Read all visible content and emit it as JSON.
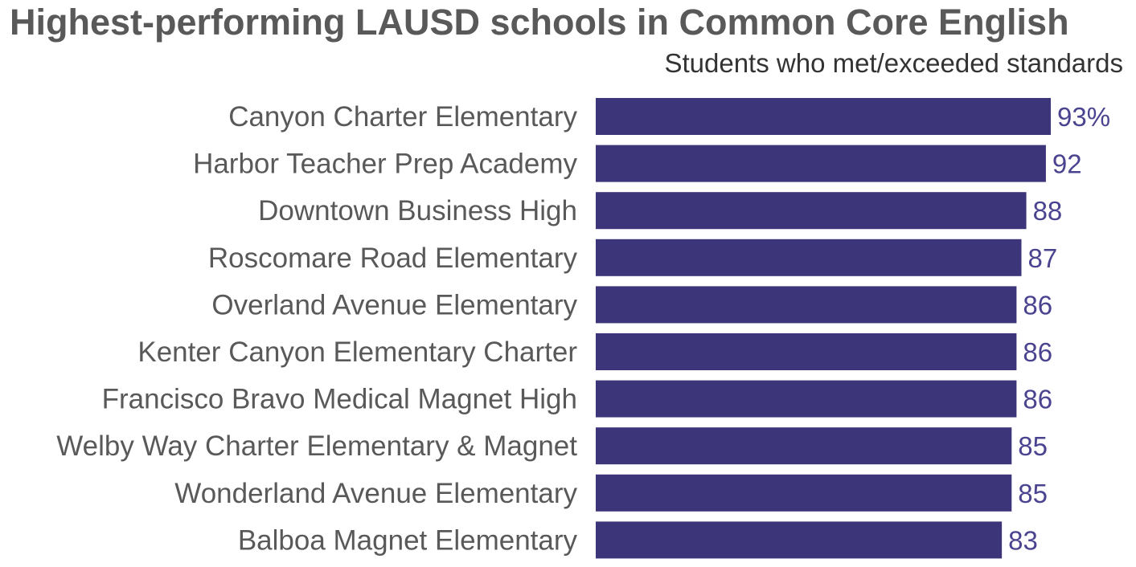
{
  "chart_data": {
    "type": "bar",
    "orientation": "horizontal",
    "title": "Highest-performing LAUSD schools in Common Core English",
    "subtitle": "Students who met/exceeded standards",
    "categories": [
      "Canyon Charter Elementary",
      "Harbor Teacher Prep Academy",
      "Downtown Business High",
      "Roscomare Road Elementary",
      "Overland Avenue Elementary",
      "Kenter Canyon Elementary Charter",
      "Francisco Bravo Medical Magnet High",
      "Welby Way Charter Elementary & Magnet",
      "Wonderland Avenue Elementary",
      "Balboa Magnet Elementary"
    ],
    "values": [
      93,
      92,
      88,
      87,
      86,
      86,
      86,
      85,
      85,
      83
    ],
    "value_labels": [
      "93%",
      "92",
      "88",
      "87",
      "86",
      "86",
      "86",
      "85",
      "85",
      "83"
    ],
    "xlim": [
      0,
      93
    ],
    "grid": false,
    "legend": "none"
  },
  "colors": {
    "bar": "#3d357a",
    "value_label": "#4a4490"
  }
}
